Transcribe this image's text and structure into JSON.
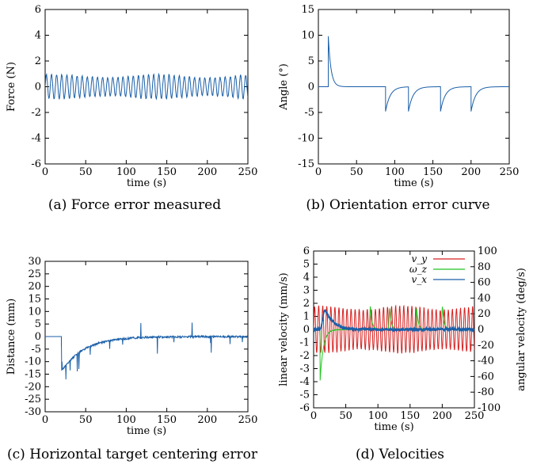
{
  "chart_data": [
    {
      "id": "a",
      "type": "line",
      "caption": "(a) Force error measured",
      "xlabel": "time (s)",
      "ylabel": "Force (N)",
      "xlim": [
        0,
        250
      ],
      "ylim": [
        -6,
        6
      ],
      "xticks": [
        0,
        50,
        100,
        150,
        200,
        250
      ],
      "yticks": [
        -6,
        -4,
        -2,
        0,
        2,
        4,
        6
      ],
      "series": [
        {
          "color": "#1a5fa8",
          "signal": "oscillation",
          "period_s": 6.3,
          "amplitude": [
            0.7,
            0.95
          ],
          "x_range": [
            0,
            250
          ]
        }
      ]
    },
    {
      "id": "b",
      "type": "line",
      "caption": "(b) Orientation error curve",
      "xlabel": "time (s)",
      "ylabel": "Angle (°)",
      "xlim": [
        0,
        250
      ],
      "ylim": [
        -15,
        15
      ],
      "xticks": [
        0,
        50,
        100,
        150,
        200,
        250
      ],
      "yticks": [
        -15,
        -10,
        -5,
        0,
        5,
        10,
        15
      ],
      "series": [
        {
          "color": "#1a5fa8",
          "signal": "decaying-steps",
          "events": [
            [
              13,
              9.8
            ],
            [
              88,
              -4.8
            ],
            [
              118,
              -4.8
            ],
            [
              160,
              -4.8
            ],
            [
              200,
              -4.8
            ]
          ],
          "x_range": [
            0,
            250
          ]
        }
      ]
    },
    {
      "id": "c",
      "type": "line",
      "caption": "(c) Horizontal target centering error",
      "xlabel": "time (s)",
      "ylabel": "Distance (mm)",
      "xlim": [
        0,
        250
      ],
      "ylim": [
        -30,
        30
      ],
      "xticks": [
        0,
        50,
        100,
        150,
        200,
        250
      ],
      "yticks": [
        -30,
        -25,
        -20,
        -15,
        -10,
        -5,
        0,
        5,
        10,
        15,
        20,
        25,
        30
      ],
      "series": [
        {
          "color": "#1a5fa8",
          "signal": "step-recovery",
          "step_time": 20,
          "min_value": -14,
          "x_range": [
            0,
            250
          ]
        }
      ]
    },
    {
      "id": "d",
      "type": "line",
      "caption": "(d) Velocities",
      "xlabel": "time (s)",
      "ylabel": "linear velocity (mm/s)",
      "y2label": "angular velocity (deg/s)",
      "xlim": [
        0,
        250
      ],
      "ylim": [
        -6,
        6
      ],
      "y2lim": [
        -100,
        100
      ],
      "xticks": [
        0,
        50,
        100,
        150,
        200,
        250
      ],
      "yticks": [
        -6,
        -5,
        -4,
        -3,
        -2,
        -1,
        0,
        1,
        2,
        3,
        4,
        5,
        6
      ],
      "y2ticks": [
        -100,
        -80,
        -60,
        -40,
        -20,
        0,
        20,
        40,
        60,
        80,
        100
      ],
      "legend_position": "top-right",
      "series": [
        {
          "name": "v_y",
          "color": "#d62020",
          "signal": "oscillation",
          "period_s": 6.3,
          "amplitude": [
            1.5,
            1.8
          ],
          "axis": "left"
        },
        {
          "name": "ω_z",
          "color": "#22c422",
          "signal": "spikes",
          "events": [
            [
              10,
              -4.0
            ],
            [
              88,
              1.9
            ],
            [
              118,
              1.8
            ],
            [
              160,
              1.8
            ],
            [
              200,
              1.9
            ]
          ],
          "axis": "left"
        },
        {
          "name": "v_x",
          "color": "#1a5fa8",
          "signal": "bump",
          "events": [
            [
              17,
              1.5
            ]
          ],
          "axis": "left"
        }
      ]
    }
  ]
}
